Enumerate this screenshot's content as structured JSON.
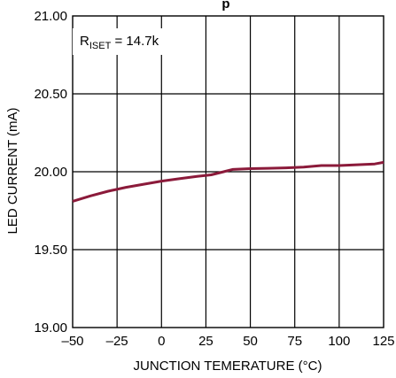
{
  "chart_data": {
    "type": "line",
    "title": "",
    "title_fragment": "p",
    "xlabel": "JUNCTION TEMERATURE (°C)",
    "ylabel": "LED CURRENT (mA)",
    "xlim": [
      -50,
      125
    ],
    "ylim": [
      19.0,
      21.0
    ],
    "xticks": [
      -50,
      -25,
      0,
      25,
      50,
      75,
      100,
      125
    ],
    "xtick_labels": [
      "–50",
      "–25",
      "0",
      "25",
      "50",
      "75",
      "100",
      "125"
    ],
    "yticks": [
      21.0,
      20.5,
      20.0,
      19.5,
      19.0
    ],
    "ytick_labels": [
      "21.00",
      "20.50",
      "20.00",
      "19.50",
      "19.00"
    ],
    "grid": true,
    "annotation": {
      "main": "R",
      "subscript": "ISET",
      "rest": " = 14.7k"
    },
    "line_color": "#8b1a3a",
    "series": [
      {
        "x": [
          -50,
          -40,
          -30,
          -20,
          -10,
          0,
          10,
          20,
          28,
          35,
          40,
          50,
          60,
          70,
          80,
          90,
          100,
          110,
          120,
          125
        ],
        "y": [
          19.81,
          19.845,
          19.875,
          19.9,
          19.92,
          19.94,
          19.955,
          19.97,
          19.98,
          20.0,
          20.015,
          20.02,
          20.022,
          20.025,
          20.03,
          20.04,
          20.04,
          20.045,
          20.05,
          20.06
        ]
      }
    ]
  }
}
